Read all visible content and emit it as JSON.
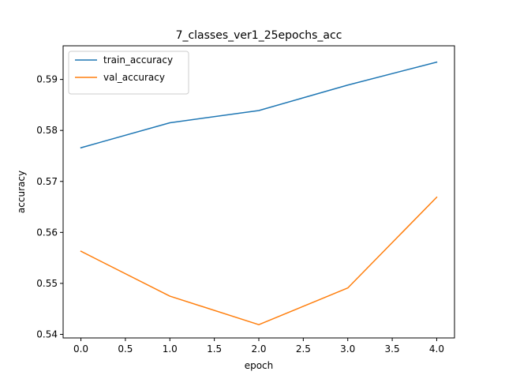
{
  "chart_data": {
    "type": "line",
    "title": "7_classes_ver1_25epochs_acc",
    "xlabel": "epoch",
    "ylabel": "accuracy",
    "x": [
      0,
      1,
      2,
      3,
      4
    ],
    "xticks": [
      0.0,
      0.5,
      1.0,
      1.5,
      2.0,
      2.5,
      3.0,
      3.5,
      4.0
    ],
    "xtick_labels": [
      "0.0",
      "0.5",
      "1.0",
      "1.5",
      "2.0",
      "2.5",
      "3.0",
      "3.5",
      "4.0"
    ],
    "xlim": [
      -0.2,
      4.2
    ],
    "yticks": [
      0.54,
      0.55,
      0.56,
      0.57,
      0.58,
      0.59
    ],
    "ytick_labels": [
      "0.54",
      "0.55",
      "0.56",
      "0.57",
      "0.58",
      "0.59"
    ],
    "ylim": [
      0.5393,
      0.5966
    ],
    "grid": false,
    "legend_position": "upper-left",
    "series": [
      {
        "name": "train_accuracy",
        "color": "#1f77b4",
        "values": [
          0.5766,
          0.5815,
          0.5839,
          0.5889,
          0.5934
        ]
      },
      {
        "name": "val_accuracy",
        "color": "#ff7f0e",
        "values": [
          0.5563,
          0.5475,
          0.5419,
          0.5491,
          0.5669
        ]
      }
    ]
  }
}
